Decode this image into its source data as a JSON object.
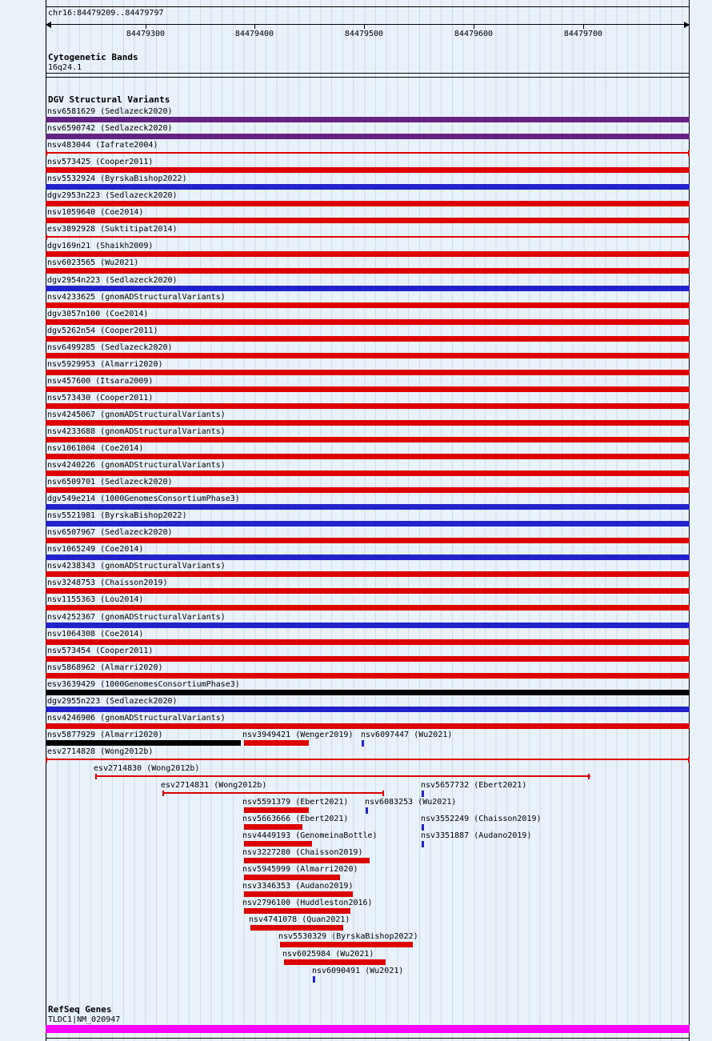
{
  "colors": {
    "loss": "#dd0000",
    "gain": "#2323cb",
    "complex": "#662482",
    "black": "#000000",
    "gene": "#ff00ff",
    "grid": "#cbdcee",
    "background": "#e9f1f9",
    "text": "#000000"
  },
  "chart_data": {
    "type": "bar",
    "orientation": "horizontal-genomic-intervals",
    "region_label": "chr16:84479209..84479797",
    "x_axis": {
      "start": 84479209,
      "end": 84479797,
      "tick_values": [
        84479300,
        84479400,
        84479500,
        84479600,
        84479700
      ],
      "tick_labels": [
        "84479300",
        "84479400",
        "84479500",
        "84479600",
        "84479700"
      ],
      "grid": true
    },
    "sections": {
      "cytogenetic": {
        "section_title": "Cytogenetic Bands",
        "band_label": "16q24.1"
      },
      "dgv": {
        "section_title": "DGV Structural Variants",
        "rows": [
          [
            {
              "label": "nsv6581629 (Sedlazeck2020)",
              "start": 84479209,
              "end": 84479797,
              "color": "complex",
              "glyph": "bar"
            }
          ],
          [
            {
              "label": "nsv6590742 (Sedlazeck2020)",
              "start": 84479209,
              "end": 84479797,
              "color": "complex",
              "glyph": "bar"
            }
          ],
          [
            {
              "label": "nsv483044 (Iafrate2004)",
              "start": 84479209,
              "end": 84479797,
              "color": "loss",
              "glyph": "line"
            }
          ],
          [
            {
              "label": "nsv573425 (Cooper2011)",
              "start": 84479209,
              "end": 84479797,
              "color": "loss",
              "glyph": "bar"
            }
          ],
          [
            {
              "label": "nsv5532924 (ByrskaBishop2022)",
              "start": 84479209,
              "end": 84479797,
              "color": "gain",
              "glyph": "bar"
            }
          ],
          [
            {
              "label": "dgv2953n223 (Sedlazeck2020)",
              "start": 84479209,
              "end": 84479797,
              "color": "loss",
              "glyph": "bar"
            }
          ],
          [
            {
              "label": "nsv1059640 (Coe2014)",
              "start": 84479209,
              "end": 84479797,
              "color": "loss",
              "glyph": "bar"
            }
          ],
          [
            {
              "label": "esv3892928 (Suktitipat2014)",
              "start": 84479209,
              "end": 84479797,
              "color": "loss",
              "glyph": "line"
            }
          ],
          [
            {
              "label": "dgv169n21 (Shaikh2009)",
              "start": 84479209,
              "end": 84479797,
              "color": "loss",
              "glyph": "bar"
            }
          ],
          [
            {
              "label": "nsv6023565 (Wu2021)",
              "start": 84479209,
              "end": 84479797,
              "color": "loss",
              "glyph": "bar"
            }
          ],
          [
            {
              "label": "dgv2954n223 (Sedlazeck2020)",
              "start": 84479209,
              "end": 84479797,
              "color": "gain",
              "glyph": "bar"
            }
          ],
          [
            {
              "label": "nsv4233625 (gnomADStructuralVariants)",
              "start": 84479209,
              "end": 84479797,
              "color": "loss",
              "glyph": "bar"
            }
          ],
          [
            {
              "label": "dgv3057n100 (Coe2014)",
              "start": 84479209,
              "end": 84479797,
              "color": "loss",
              "glyph": "bar"
            }
          ],
          [
            {
              "label": "dgv5262n54 (Cooper2011)",
              "start": 84479209,
              "end": 84479797,
              "color": "loss",
              "glyph": "bar"
            }
          ],
          [
            {
              "label": "nsv6499285 (Sedlazeck2020)",
              "start": 84479209,
              "end": 84479797,
              "color": "loss",
              "glyph": "bar"
            }
          ],
          [
            {
              "label": "nsv5929953 (Almarri2020)",
              "start": 84479209,
              "end": 84479797,
              "color": "loss",
              "glyph": "bar"
            }
          ],
          [
            {
              "label": "nsv457600 (Itsara2009)",
              "start": 84479209,
              "end": 84479797,
              "color": "loss",
              "glyph": "bar"
            }
          ],
          [
            {
              "label": "nsv573430 (Cooper2011)",
              "start": 84479209,
              "end": 84479797,
              "color": "loss",
              "glyph": "bar"
            }
          ],
          [
            {
              "label": "nsv4245067 (gnomADStructuralVariants)",
              "start": 84479209,
              "end": 84479797,
              "color": "loss",
              "glyph": "bar"
            }
          ],
          [
            {
              "label": "nsv4233688 (gnomADStructuralVariants)",
              "start": 84479209,
              "end": 84479797,
              "color": "loss",
              "glyph": "bar"
            }
          ],
          [
            {
              "label": "nsv1061004 (Coe2014)",
              "start": 84479209,
              "end": 84479797,
              "color": "loss",
              "glyph": "bar"
            }
          ],
          [
            {
              "label": "nsv4240226 (gnomADStructuralVariants)",
              "start": 84479209,
              "end": 84479797,
              "color": "loss",
              "glyph": "bar"
            }
          ],
          [
            {
              "label": "nsv6509701 (Sedlazeck2020)",
              "start": 84479209,
              "end": 84479797,
              "color": "loss",
              "glyph": "bar"
            }
          ],
          [
            {
              "label": "dgv549e214 (1000GenomesConsortiumPhase3)",
              "start": 84479209,
              "end": 84479797,
              "color": "gain",
              "glyph": "bar"
            }
          ],
          [
            {
              "label": "nsv5521981 (ByrskaBishop2022)",
              "start": 84479209,
              "end": 84479797,
              "color": "gain",
              "glyph": "bar"
            }
          ],
          [
            {
              "label": "nsv6507967 (Sedlazeck2020)",
              "start": 84479209,
              "end": 84479797,
              "color": "loss",
              "glyph": "bar"
            }
          ],
          [
            {
              "label": "nsv1065249 (Coe2014)",
              "start": 84479209,
              "end": 84479797,
              "color": "gain",
              "glyph": "bar"
            }
          ],
          [
            {
              "label": "nsv4238343 (gnomADStructuralVariants)",
              "start": 84479209,
              "end": 84479797,
              "color": "loss",
              "glyph": "bar"
            }
          ],
          [
            {
              "label": "nsv3248753 (Chaisson2019)",
              "start": 84479209,
              "end": 84479797,
              "color": "loss",
              "glyph": "bar"
            }
          ],
          [
            {
              "label": "nsv1155363 (Lou2014)",
              "start": 84479209,
              "end": 84479797,
              "color": "loss",
              "glyph": "bar"
            }
          ],
          [
            {
              "label": "nsv4252367 (gnomADStructuralVariants)",
              "start": 84479209,
              "end": 84479797,
              "color": "gain",
              "glyph": "bar"
            }
          ],
          [
            {
              "label": "nsv1064308 (Coe2014)",
              "start": 84479209,
              "end": 84479797,
              "color": "loss",
              "glyph": "bar"
            }
          ],
          [
            {
              "label": "nsv573454 (Cooper2011)",
              "start": 84479209,
              "end": 84479797,
              "color": "loss",
              "glyph": "bar"
            }
          ],
          [
            {
              "label": "nsv5868962 (Almarri2020)",
              "start": 84479209,
              "end": 84479797,
              "color": "loss",
              "glyph": "bar"
            }
          ],
          [
            {
              "label": "esv3639429 (1000GenomesConsortiumPhase3)",
              "start": 84479209,
              "end": 84479797,
              "color": "black",
              "glyph": "bar"
            }
          ],
          [
            {
              "label": "dgv2955n223 (Sedlazeck2020)",
              "start": 84479209,
              "end": 84479797,
              "color": "gain",
              "glyph": "bar"
            }
          ],
          [
            {
              "label": "nsv4246906 (gnomADStructuralVariants)",
              "start": 84479209,
              "end": 84479797,
              "color": "loss",
              "glyph": "bar"
            }
          ],
          [
            {
              "label": "nsv5877929 (Almarri2020)",
              "start": 84479209,
              "end": 84479387,
              "color": "black",
              "glyph": "bar"
            },
            {
              "label": "nsv3949421 (Wenger2019)",
              "start": 84479390,
              "end": 84479449,
              "color": "loss",
              "glyph": "bar"
            },
            {
              "label": "nsv6097447 (Wu2021)",
              "start": 84479498,
              "end": 84479498,
              "color": "gain",
              "glyph": "tick"
            }
          ],
          [
            {
              "label": "esv2714828 (Wong2012b)",
              "start": 84479209,
              "end": 84479797,
              "color": "loss",
              "glyph": "line"
            }
          ],
          [
            {
              "label": "esv2714830 (Wong2012b)",
              "start": 84479254,
              "end": 84479706,
              "color": "loss",
              "glyph": "line"
            }
          ],
          [
            {
              "label": "esv2714831 (Wong2012b)",
              "start": 84479316,
              "end": 84479518,
              "color": "loss",
              "glyph": "line"
            },
            {
              "label": "nsv5657732 (Ebert2021)",
              "start": 84479553,
              "end": 84479553,
              "color": "gain",
              "glyph": "tick"
            }
          ],
          [
            {
              "label": "nsv5591379 (Ebert2021)",
              "start": 84479390,
              "end": 84479449,
              "color": "loss",
              "glyph": "bar"
            },
            {
              "label": "nsv6083253 (Wu2021)",
              "start": 84479502,
              "end": 84479502,
              "color": "gain",
              "glyph": "tick"
            }
          ],
          [
            {
              "label": "nsv5663666 (Ebert2021)",
              "start": 84479390,
              "end": 84479443,
              "color": "loss",
              "glyph": "bar"
            },
            {
              "label": "nsv3552249 (Chaisson2019)",
              "start": 84479553,
              "end": 84479553,
              "color": "gain",
              "glyph": "tick"
            }
          ],
          [
            {
              "label": "nsv4449193 (GenomeinaBottle)",
              "start": 84479390,
              "end": 84479452,
              "color": "loss",
              "glyph": "bar"
            },
            {
              "label": "nsv3351887 (Audano2019)",
              "start": 84479553,
              "end": 84479553,
              "color": "gain",
              "glyph": "tick"
            }
          ],
          [
            {
              "label": "nsv3227280 (Chaisson2019)",
              "start": 84479390,
              "end": 84479505,
              "color": "loss",
              "glyph": "bar"
            }
          ],
          [
            {
              "label": "nsv5945999 (Almarri2020)",
              "start": 84479390,
              "end": 84479478,
              "color": "loss",
              "glyph": "bar"
            }
          ],
          [
            {
              "label": "nsv3346353 (Audano2019)",
              "start": 84479390,
              "end": 84479489,
              "color": "loss",
              "glyph": "bar"
            }
          ],
          [
            {
              "label": "nsv2796100 (Huddleston2016)",
              "start": 84479390,
              "end": 84479487,
              "color": "loss",
              "glyph": "bar"
            }
          ],
          [
            {
              "label": "nsv4741078 (Quan2021)",
              "start": 84479396,
              "end": 84479481,
              "color": "loss",
              "glyph": "bar"
            }
          ],
          [
            {
              "label": "nsv5530329 (ByrskaBishop2022)",
              "start": 84479423,
              "end": 84479544,
              "color": "loss",
              "glyph": "bar"
            }
          ],
          [
            {
              "label": "nsv6025984 (Wu2021)",
              "start": 84479427,
              "end": 84479520,
              "color": "loss",
              "glyph": "bar"
            }
          ],
          [
            {
              "label": "nsv6090491 (Wu2021)",
              "start": 84479454,
              "end": 84479454,
              "color": "gain",
              "glyph": "tick"
            }
          ]
        ]
      },
      "refseq": {
        "section_title": "RefSeq Genes",
        "genes": [
          {
            "label": "TLDC1|NM_020947",
            "start": 84479209,
            "end": 84479797,
            "color": "gene"
          }
        ]
      }
    }
  }
}
